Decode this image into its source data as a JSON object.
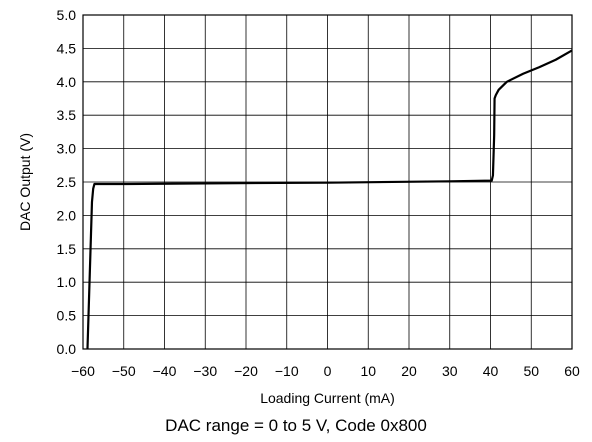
{
  "chart_data": {
    "type": "line",
    "xlabel": "Loading Current (mA)",
    "ylabel": "DAC Output (V)",
    "xlim": [
      -60,
      60
    ],
    "ylim": [
      0,
      5
    ],
    "x_ticks": [
      -60,
      -50,
      -40,
      -30,
      -20,
      -10,
      0,
      10,
      20,
      30,
      40,
      50,
      60
    ],
    "y_ticks": [
      0,
      0.5,
      1.0,
      1.5,
      2.0,
      2.5,
      3.0,
      3.5,
      4.0,
      4.5,
      5.0
    ],
    "x_tick_labels": [
      "−60",
      "−50",
      "−40",
      "−30",
      "−20",
      "−10",
      "0",
      "10",
      "20",
      "30",
      "40",
      "50",
      "60"
    ],
    "y_tick_labels": [
      "0.0",
      "0.5",
      "1.0",
      "1.5",
      "2.0",
      "2.5",
      "3.0",
      "3.5",
      "4.0",
      "4.5",
      "5.0"
    ],
    "grid": true,
    "line_color": "#000000",
    "series": [
      {
        "x": [
          -58.9,
          -57.8,
          -57.5,
          -57.2,
          -50,
          -30,
          0,
          30,
          40.3,
          40.6,
          40.9,
          41.0,
          41.3,
          42,
          44,
          48,
          52,
          56,
          60
        ],
        "y": [
          0.0,
          2.2,
          2.4,
          2.47,
          2.47,
          2.48,
          2.49,
          2.51,
          2.52,
          2.6,
          3.2,
          3.75,
          3.8,
          3.88,
          4.0,
          4.12,
          4.22,
          4.33,
          4.47
        ]
      }
    ]
  },
  "caption": "DAC range = 0 to 5 V, Code 0x800"
}
